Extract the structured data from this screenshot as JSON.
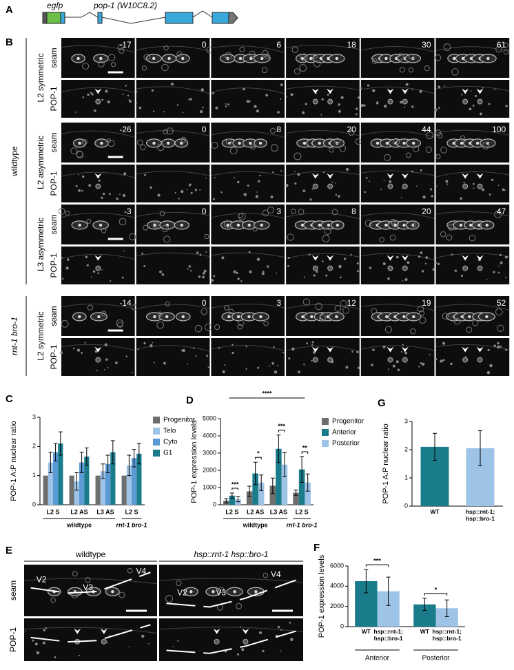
{
  "gene_diagram": {
    "panel": "A",
    "labels": [
      "egfp",
      "pop-1 (W10C8.2)"
    ]
  },
  "timelapse": {
    "panel": "B",
    "conditions": [
      {
        "label": "wildtype",
        "blocks": [
          {
            "label": "L2 symmetric",
            "rows": [
              "seam",
              "POP-1"
            ],
            "times": [
              -17,
              0,
              6,
              18,
              30,
              61
            ]
          },
          {
            "label": "L2 asymmetric",
            "rows": [
              "seam",
              "POP-1"
            ],
            "times": [
              -26,
              0,
              8,
              20,
              44,
              100
            ]
          },
          {
            "label": "L3 asymmetric",
            "rows": [
              "seam",
              "POP-1"
            ],
            "times": [
              -3,
              0,
              3,
              8,
              20,
              47
            ]
          }
        ]
      },
      {
        "label": "rnt-1 bro-1",
        "blocks": [
          {
            "label": "L2 symmetric",
            "rows": [
              "seam",
              "POP-1"
            ],
            "times": [
              -14,
              0,
              3,
              12,
              19,
              52
            ]
          }
        ]
      }
    ]
  },
  "chart_data": [
    {
      "type": "bar",
      "panel": "C",
      "y_label": "POP-1 A:P nuclear ratio",
      "categories": [
        "L2 S",
        "L2 AS",
        "L3 AS",
        "L2 S"
      ],
      "category_groups": [
        "wildtype",
        "wildtype",
        "wildtype",
        "rnt-1 bro-1"
      ],
      "series": [
        {
          "name": "Progenitor",
          "color": "#6e6e6e",
          "values": [
            1,
            1,
            1,
            1
          ]
        },
        {
          "name": "Telo",
          "color": "#9dc3e6",
          "values": [
            1.45,
            0.8,
            1.15,
            1.35
          ],
          "errors": [
            0.35,
            0.3,
            0.25,
            0.35
          ]
        },
        {
          "name": "Cyto",
          "color": "#5b9bd5",
          "values": [
            1.8,
            1.45,
            1.4,
            1.6
          ],
          "errors": [
            0.3,
            0.35,
            0.3,
            0.3
          ]
        },
        {
          "name": "G1",
          "color": "#1a7c8b",
          "values": [
            2.1,
            1.65,
            1.8,
            1.75
          ],
          "errors": [
            0.4,
            0.3,
            0.4,
            0.35
          ]
        }
      ],
      "ylim": [
        0,
        3
      ],
      "yticks": [
        0,
        1,
        2,
        3
      ],
      "legend": "right"
    },
    {
      "type": "bar",
      "panel": "D",
      "y_label": "POP-1 expression levels",
      "categories": [
        "L2 S",
        "L2 AS",
        "L3 AS",
        "L2 S"
      ],
      "category_groups": [
        "wildtype",
        "wildtype",
        "wildtype",
        "rnt-1 bro-1"
      ],
      "series": [
        {
          "name": "Progenitor",
          "color": "#6e6e6e",
          "values": [
            230,
            780,
            1100,
            700
          ],
          "errors": [
            120,
            300,
            450,
            150
          ]
        },
        {
          "name": "Anterior",
          "color": "#1a7c8b",
          "values": [
            530,
            1820,
            3250,
            2050
          ],
          "errors": [
            150,
            650,
            800,
            750
          ]
        },
        {
          "name": "Posterior",
          "color": "#9dc3e6",
          "values": [
            320,
            1280,
            2330,
            1290
          ],
          "errors": [
            150,
            450,
            700,
            500
          ]
        }
      ],
      "significance": [
        "***",
        "*",
        "***",
        "**"
      ],
      "overall_significance": "****",
      "ylim": [
        0,
        5000
      ],
      "yticks": [
        0,
        1000,
        2000,
        3000,
        4000,
        5000
      ],
      "legend": "right"
    },
    {
      "type": "bar",
      "panel": "G",
      "y_label": "POP-1 A:P nuclear ratio",
      "categories": [
        "WT",
        "hsp::rnt-1; hsp::bro-1"
      ],
      "series": [
        {
          "colors": [
            "#1a7c8b",
            "#9dc3e6"
          ],
          "values": [
            2.1,
            2.05
          ],
          "errors": [
            0.48,
            0.62
          ]
        }
      ],
      "ylim": [
        0,
        3
      ],
      "yticks": [
        0,
        1,
        2,
        3
      ]
    },
    {
      "type": "bar",
      "panel": "F",
      "y_label": "POP-1 expression levels",
      "categories": [
        "Anterior",
        "Posterior"
      ],
      "series": [
        {
          "name": "WT",
          "color": "#1a7c8b",
          "values": [
            4500,
            2200
          ],
          "errors": [
            1150,
            600
          ]
        },
        {
          "name": "hsp::rnt-1; hsp::bro-1",
          "color": "#9dc3e6",
          "values": [
            3500,
            1820
          ],
          "errors": [
            1400,
            820
          ]
        }
      ],
      "significance": [
        "***",
        "*"
      ],
      "ylim": [
        0,
        6000
      ],
      "yticks": [
        0,
        2000,
        4000,
        6000
      ]
    }
  ],
  "comparison": {
    "panel": "E",
    "columns": [
      "wildtype",
      "hsp::rnt-1 hsp::bro-1"
    ],
    "rows": [
      "seam",
      "POP-1"
    ],
    "cell_labels": [
      [
        "V2",
        "V3",
        "V4"
      ],
      [
        "V2",
        "V3",
        "V4"
      ]
    ]
  }
}
